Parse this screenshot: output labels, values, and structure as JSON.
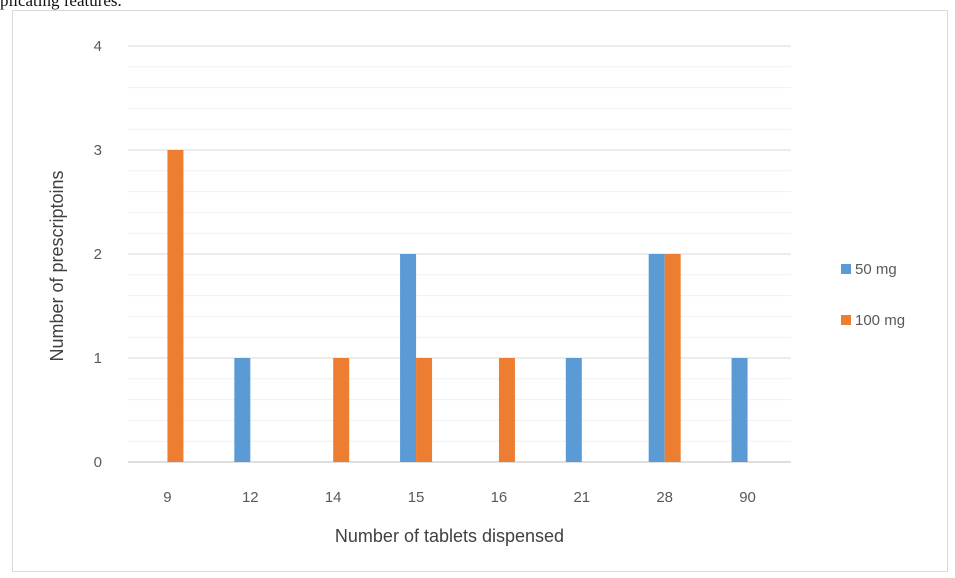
{
  "page": {
    "top_text": "plicating features."
  },
  "chart_data": {
    "type": "bar",
    "title": "",
    "xlabel": "Number of tablets dispensed",
    "ylabel": "Number of prescriptoins",
    "categories": [
      "9",
      "12",
      "14",
      "15",
      "16",
      "21",
      "28",
      "90"
    ],
    "series": [
      {
        "name": "50 mg",
        "values": [
          0,
          1,
          0,
          2,
          0,
          1,
          2,
          1
        ],
        "color": "#5b9bd5"
      },
      {
        "name": "100 mg",
        "values": [
          3,
          0,
          1,
          1,
          1,
          0,
          2,
          0
        ],
        "color": "#ed7d31"
      }
    ],
    "ylim": [
      0,
      4
    ],
    "yticks": [
      0,
      1,
      2,
      3,
      4
    ],
    "grid": true,
    "legend": "right"
  }
}
